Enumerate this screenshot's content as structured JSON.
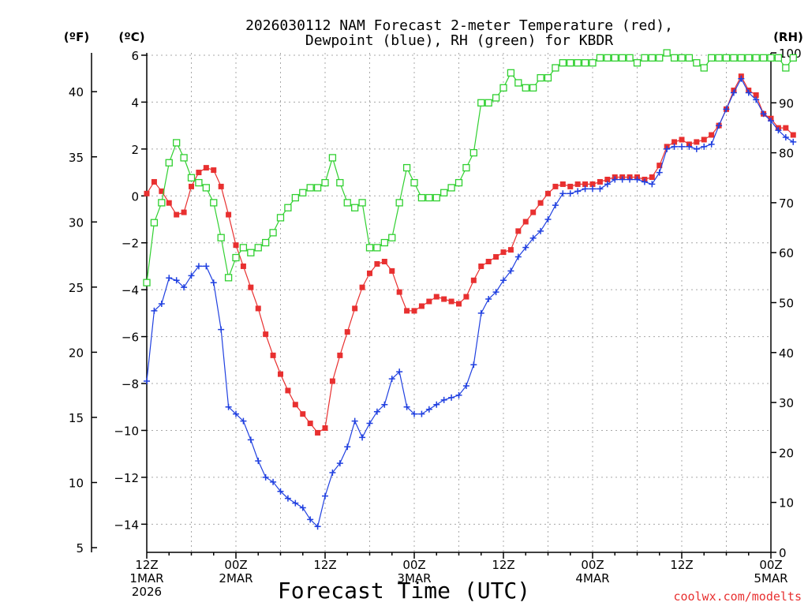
{
  "chart_data": {
    "type": "line",
    "title_line1": "2026030112 NAM Forecast 2-meter Temperature (red),",
    "title_line2": "Dewpoint (blue), RH (green) for KBDR",
    "xlabel": "Forecast Time (UTC)",
    "credit": "coolwx.com/modelts",
    "unit_f": "(ºF)",
    "unit_c": "(ºC)",
    "unit_rh": "(RH)",
    "x_range_hours": [
      0,
      84
    ],
    "ylim_c": [
      -15.2,
      6.1
    ],
    "ylim_rh": [
      0,
      100
    ],
    "y_ticks_c": [
      "6",
      "4",
      "2",
      "0",
      "−2",
      "−4",
      "−6",
      "−8",
      "−10",
      "−12",
      "−14"
    ],
    "y_tick_values_c": [
      6,
      4,
      2,
      0,
      -2,
      -4,
      -6,
      -8,
      -10,
      -12,
      -14
    ],
    "y_ticks_f": [
      "40",
      "35",
      "30",
      "25",
      "20",
      "15",
      "10",
      "5"
    ],
    "y_tick_values_f": [
      40,
      35,
      30,
      25,
      20,
      15,
      10,
      5
    ],
    "y_ticks_rh": [
      "100",
      "90",
      "80",
      "70",
      "60",
      "50",
      "40",
      "30",
      "20",
      "10",
      "0"
    ],
    "y_tick_values_rh": [
      100,
      90,
      80,
      70,
      60,
      50,
      40,
      30,
      20,
      10,
      0
    ],
    "x_ticks": [
      {
        "hour": 0,
        "lines": [
          "12Z",
          "1MAR",
          "2026"
        ]
      },
      {
        "hour": 12,
        "lines": [
          "00Z",
          "2MAR"
        ]
      },
      {
        "hour": 24,
        "lines": [
          "12Z"
        ]
      },
      {
        "hour": 36,
        "lines": [
          "00Z",
          "3MAR"
        ]
      },
      {
        "hour": 48,
        "lines": [
          "12Z"
        ]
      },
      {
        "hour": 60,
        "lines": [
          "00Z",
          "4MAR"
        ]
      },
      {
        "hour": 72,
        "lines": [
          "12Z"
        ]
      },
      {
        "hour": 84,
        "lines": [
          "00Z",
          "5MAR"
        ]
      }
    ],
    "series": [
      {
        "name": "Temperature",
        "unit": "C",
        "color": "#e83030",
        "marker": "filled-square",
        "values": [
          0.1,
          0.6,
          0.2,
          -0.3,
          -0.8,
          -0.7,
          0.4,
          1.0,
          1.2,
          1.1,
          0.4,
          -0.8,
          -2.1,
          -3.0,
          -3.9,
          -4.8,
          -5.9,
          -6.8,
          -7.6,
          -8.3,
          -8.9,
          -9.3,
          -9.7,
          -10.1,
          -9.9,
          -7.9,
          -6.8,
          -5.8,
          -4.8,
          -3.9,
          -3.3,
          -2.9,
          -2.8,
          -3.2,
          -4.1,
          -4.9,
          -4.9,
          -4.7,
          -4.5,
          -4.3,
          -4.4,
          -4.5,
          -4.6,
          -4.3,
          -3.6,
          -3.0,
          -2.8,
          -2.6,
          -2.4,
          -2.3,
          -1.5,
          -1.1,
          -0.7,
          -0.3,
          0.1,
          0.4,
          0.5,
          0.4,
          0.5,
          0.5,
          0.5,
          0.6,
          0.7,
          0.8,
          0.8,
          0.8,
          0.8,
          0.7,
          0.8,
          1.3,
          2.1,
          2.3,
          2.4,
          2.2,
          2.3,
          2.4,
          2.6,
          3.0,
          3.7,
          4.5,
          5.1,
          4.5,
          4.3,
          3.5,
          3.3,
          2.9,
          2.9,
          2.6
        ]
      },
      {
        "name": "Dewpoint",
        "unit": "C",
        "color": "#2040e0",
        "marker": "plus",
        "values": [
          -7.9,
          -4.9,
          -4.6,
          -3.5,
          -3.6,
          -3.9,
          -3.4,
          -3.0,
          -3.0,
          -3.7,
          -5.7,
          -9.0,
          -9.3,
          -9.6,
          -10.4,
          -11.3,
          -12.0,
          -12.2,
          -12.6,
          -12.9,
          -13.1,
          -13.3,
          -13.8,
          -14.1,
          -12.8,
          -11.8,
          -11.4,
          -10.7,
          -9.6,
          -10.3,
          -9.7,
          -9.2,
          -8.9,
          -7.8,
          -7.5,
          -9.0,
          -9.3,
          -9.3,
          -9.1,
          -8.9,
          -8.7,
          -8.6,
          -8.5,
          -8.1,
          -7.2,
          -5.0,
          -4.4,
          -4.1,
          -3.6,
          -3.2,
          -2.6,
          -2.2,
          -1.8,
          -1.5,
          -1.0,
          -0.4,
          0.1,
          0.1,
          0.2,
          0.3,
          0.3,
          0.3,
          0.5,
          0.7,
          0.7,
          0.7,
          0.7,
          0.6,
          0.5,
          1.0,
          2.0,
          2.1,
          2.1,
          2.1,
          2.0,
          2.1,
          2.2,
          3.0,
          3.7,
          4.4,
          5.0,
          4.4,
          4.1,
          3.5,
          3.2,
          2.8,
          2.5,
          2.3
        ]
      },
      {
        "name": "RH",
        "unit": "%",
        "color": "#30d030",
        "marker": "open-square",
        "values": [
          54,
          66,
          70,
          78,
          82,
          79,
          75,
          74,
          73,
          70,
          63,
          55,
          59,
          61,
          60,
          61,
          62,
          64,
          67,
          69,
          71,
          72,
          73,
          73,
          74,
          79,
          74,
          70,
          69,
          70,
          61,
          61,
          62,
          63,
          70,
          77,
          74,
          71,
          71,
          71,
          72,
          73,
          74,
          77,
          80,
          90,
          90,
          91,
          93,
          96,
          94,
          93,
          93,
          95,
          95,
          97,
          98,
          98,
          98,
          98,
          98,
          99,
          99,
          99,
          99,
          99,
          98,
          99,
          99,
          99,
          100,
          99,
          99,
          99,
          98,
          97,
          99,
          99,
          99,
          99,
          99,
          99,
          99,
          99,
          99,
          99,
          97,
          99
        ]
      }
    ]
  }
}
